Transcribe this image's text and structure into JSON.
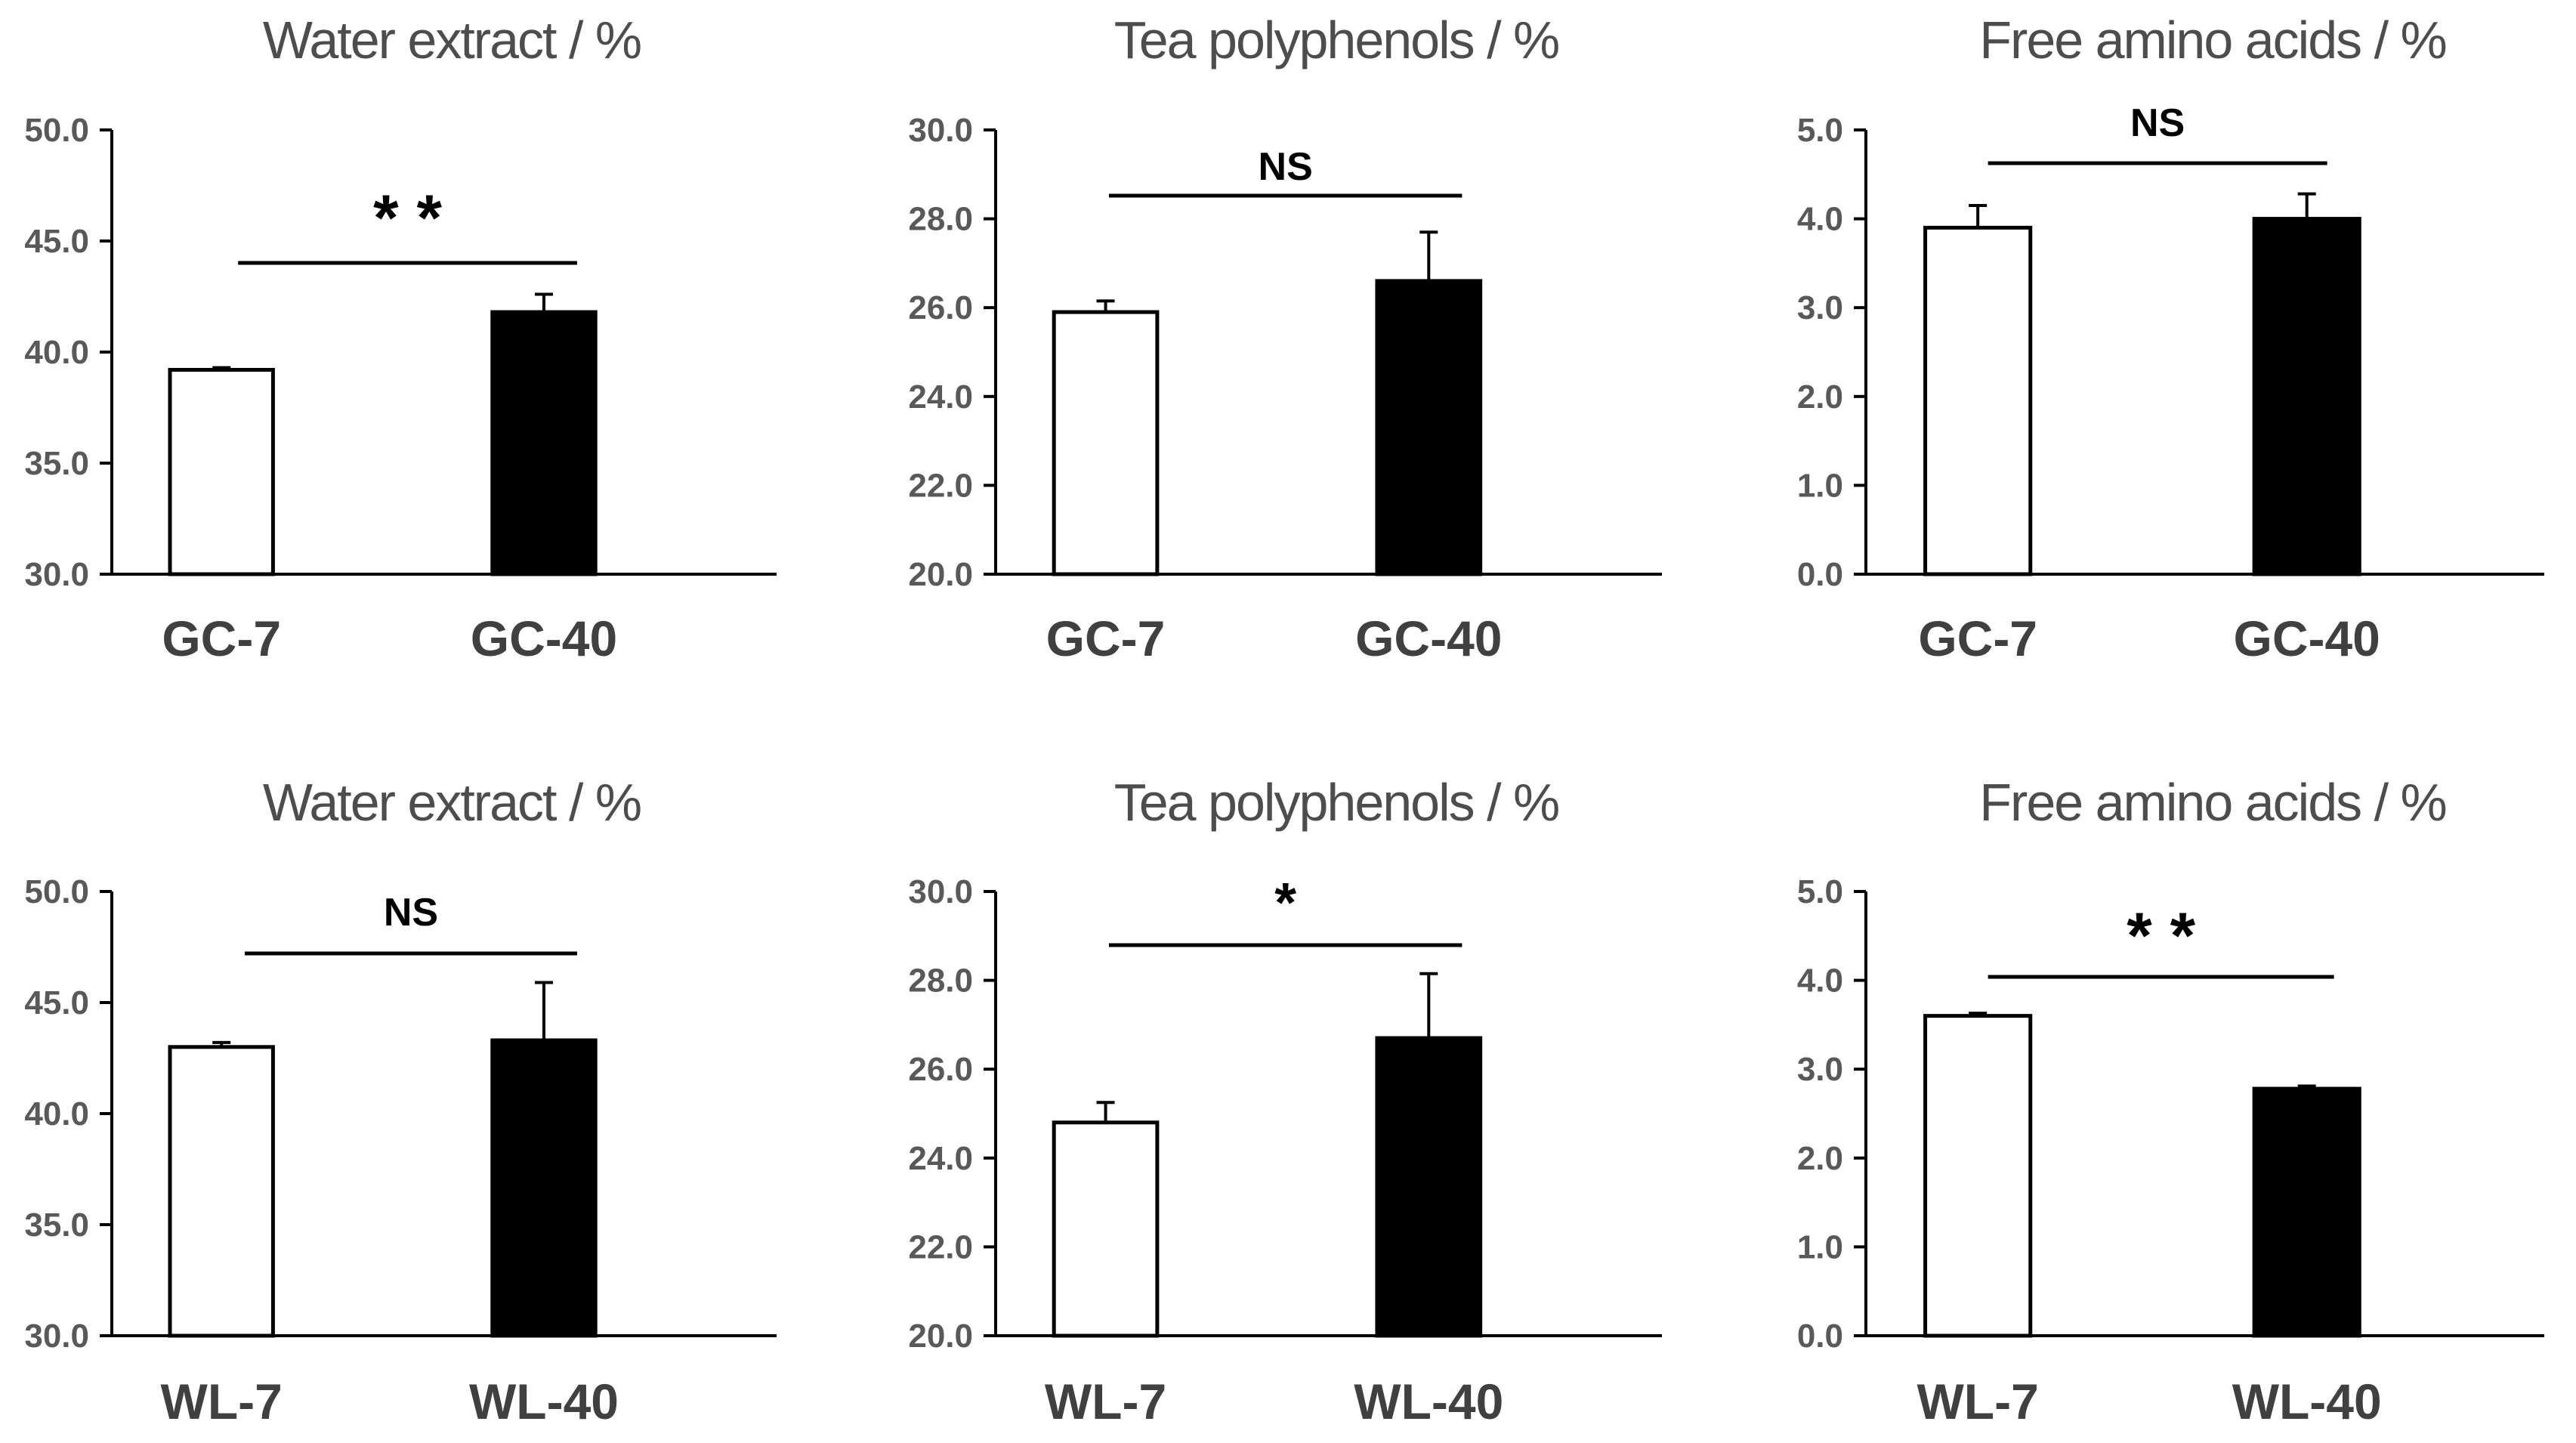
{
  "chart_data": [
    {
      "type": "bar",
      "title": "Water extract / %",
      "categories": [
        "GC-7",
        "GC-40"
      ],
      "values": [
        39.2,
        41.8
      ],
      "errors": [
        0.1,
        0.8
      ],
      "ylim": [
        30,
        50
      ],
      "yticks": [
        "30.0",
        "35.0",
        "40.0",
        "45.0",
        "50.0"
      ],
      "significance": "* *",
      "colors": [
        "#ffffff",
        "#000000"
      ]
    },
    {
      "type": "bar",
      "title": "Tea polyphenols / %",
      "categories": [
        "GC-7",
        "GC-40"
      ],
      "values": [
        25.9,
        26.6
      ],
      "errors": [
        0.25,
        1.1
      ],
      "ylim": [
        20,
        30
      ],
      "yticks": [
        "20.0",
        "22.0",
        "24.0",
        "26.0",
        "28.0",
        "30.0"
      ],
      "significance": "NS",
      "colors": [
        "#ffffff",
        "#000000"
      ]
    },
    {
      "type": "bar",
      "title": "Free amino acids / %",
      "categories": [
        "GC-7",
        "GC-40"
      ],
      "values": [
        3.9,
        4.0
      ],
      "errors": [
        0.25,
        0.28
      ],
      "ylim": [
        0,
        5
      ],
      "yticks": [
        "0.0",
        "1.0",
        "2.0",
        "3.0",
        "4.0",
        "5.0"
      ],
      "significance": "NS",
      "colors": [
        "#ffffff",
        "#000000"
      ]
    },
    {
      "type": "bar",
      "title": "Water extract / %",
      "categories": [
        "WL-7",
        "WL-40"
      ],
      "values": [
        43.0,
        43.3
      ],
      "errors": [
        0.2,
        2.6
      ],
      "ylim": [
        30,
        50
      ],
      "yticks": [
        "30.0",
        "35.0",
        "40.0",
        "45.0",
        "50.0"
      ],
      "significance": "NS",
      "colors": [
        "#ffffff",
        "#000000"
      ]
    },
    {
      "type": "bar",
      "title": "Tea polyphenols / %",
      "categories": [
        "WL-7",
        "WL-40"
      ],
      "values": [
        24.8,
        26.7
      ],
      "errors": [
        0.45,
        1.45
      ],
      "ylim": [
        20,
        30
      ],
      "yticks": [
        "20.0",
        "22.0",
        "24.0",
        "26.0",
        "28.0",
        "30.0"
      ],
      "significance": "*",
      "colors": [
        "#ffffff",
        "#000000"
      ]
    },
    {
      "type": "bar",
      "title": "Free amino acids / %",
      "categories": [
        "WL-7",
        "WL-40"
      ],
      "values": [
        3.6,
        2.78
      ],
      "errors": [
        0.03,
        0.03
      ],
      "ylim": [
        0,
        5
      ],
      "yticks": [
        "0.0",
        "1.0",
        "2.0",
        "3.0",
        "4.0",
        "5.0"
      ],
      "significance": "* *",
      "colors": [
        "#ffffff",
        "#000000"
      ]
    }
  ]
}
